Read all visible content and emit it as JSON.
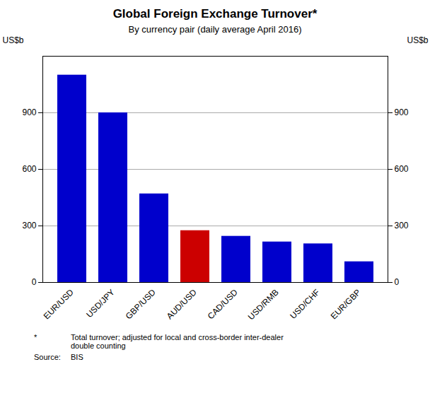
{
  "chart_data": {
    "type": "bar",
    "title": "Global Foreign Exchange Turnover*",
    "subtitle": "By currency pair (daily average April 2016)",
    "categories": [
      "EUR/USD",
      "USD/JPY",
      "GBP/USD",
      "AUD/USD",
      "CAD/USD",
      "USD/RMB",
      "USD/CHF",
      "EUR/GBP"
    ],
    "values": [
      1100,
      900,
      470,
      275,
      245,
      215,
      205,
      110
    ],
    "colors": [
      "#0000cc",
      "#0000cc",
      "#0000cc",
      "#cc0000",
      "#0000cc",
      "#0000cc",
      "#0000cc",
      "#0000cc"
    ],
    "ylabel": "US$b",
    "y2label": "US$b",
    "ylim": [
      0,
      1200
    ],
    "yticks": [
      0,
      300,
      600,
      900
    ],
    "y2lim": [
      0,
      1200
    ],
    "y2ticks": [
      0,
      300,
      600,
      900
    ],
    "grid": true,
    "footnotes": [
      [
        "*",
        "Total turnover; adjusted for local and cross-border inter-dealer\ndouble counting"
      ],
      [
        "Source:",
        "BIS"
      ]
    ]
  }
}
